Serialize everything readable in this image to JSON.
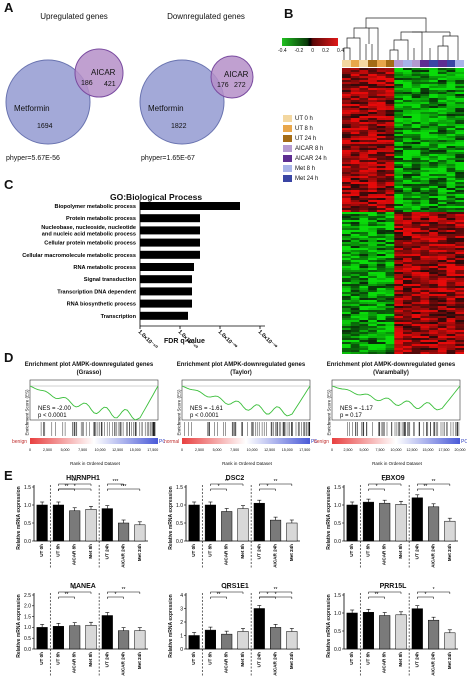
{
  "panels": {
    "A": "A",
    "B": "B",
    "C": "C",
    "D": "D",
    "E": "E"
  },
  "venn": [
    {
      "title": "Upregulated genes",
      "big_label": "Metformin",
      "small_label": "AICAR",
      "only_big": "1694",
      "overlap": "186",
      "only_small": "421",
      "phyper": "phyper=5.67E-56"
    },
    {
      "title": "Downregulated genes",
      "big_label": "Metformin",
      "small_label": "AICAR",
      "only_big": "1822",
      "overlap": "176",
      "only_small": "272",
      "phyper": "phyper=1.65E-67"
    }
  ],
  "heatmap": {
    "scale_ticks": [
      "-0.4",
      "-0.2",
      "0",
      "0.2",
      "0.4"
    ],
    "legend": [
      {
        "label": "UT 0 h",
        "color": "#f3d7a0"
      },
      {
        "label": "UT 8 h",
        "color": "#e8a64a"
      },
      {
        "label": "UT 24 h",
        "color": "#a46c16"
      },
      {
        "label": "AICAR 8 h",
        "color": "#b49ad0"
      },
      {
        "label": "AICAR 24 h",
        "color": "#5d2d91"
      },
      {
        "label": "Met 8 h",
        "color": "#a8b3e8"
      },
      {
        "label": "Met 24 h",
        "color": "#3a45a4"
      }
    ]
  },
  "go": {
    "title": "GO:Biological Process",
    "xlabel": "FDR q-value",
    "ticks": [
      "1.0x10⁻⁶⁰",
      "1.0x10⁻⁴⁰",
      "1.0x10⁻²⁰",
      "1.0x10⁻¹⁰"
    ]
  },
  "gsea": [
    {
      "title": "Enrichment plot AMPK-downregulated genes",
      "subtitle": "(Grasso)",
      "nes": "NES = -2.00",
      "p": "p < 0.0001",
      "left": "benign",
      "right": "PCa",
      "xticks": [
        "0",
        "2,500",
        "5,000",
        "7,500",
        "10,000",
        "12,500",
        "15,000",
        "17,500"
      ],
      "ylabel": "Enrichment Score (ES)",
      "xlabel": "Rank in Ordered Dataset"
    },
    {
      "title": "Enrichment plot AMPK-downregulated genes",
      "subtitle": "(Taylor)",
      "nes": "NES = -1.61",
      "p": "p < 0.0001",
      "left": "normal",
      "right": "PCa",
      "xticks": [
        "0",
        "2,500",
        "5,000",
        "7,500",
        "10,000",
        "12,500",
        "15,000",
        "17,500"
      ],
      "ylabel": "Enrichment Score (ES)",
      "xlabel": "Rank in Ordered Dataset"
    },
    {
      "title": "Enrichment plot AMPK-downregulated genes",
      "subtitle": "(Varambally)",
      "nes": "NES = -1.17",
      "p": "p = 0.17",
      "left": "benign",
      "right": "PCa",
      "xticks": [
        "0",
        "2,500",
        "5,000",
        "7,500",
        "10,000",
        "12,500",
        "15,000",
        "17,500",
        "20,000"
      ],
      "ylabel": "Enrichment Score (ES)",
      "xlabel": "Rank in Ordered Dataset"
    }
  ],
  "chart_data": [
    {
      "type": "bar",
      "title": "GO:Biological Process",
      "orientation": "horizontal",
      "xlabel": "FDR q-value",
      "categories": [
        "Biopolymer metabolic process",
        "Protein metabolic process",
        "Nucleobase, nucleoside, nucleotide and nucleic acid metabolic process",
        "Cellular protein metabolic process",
        "Cellular macromolecule metabolic process",
        "RNA metabolic process",
        "Signal transduction",
        "Transcription DNA dependent",
        "RNA biosynthetic process",
        "Transcription"
      ],
      "values": [
        100,
        60,
        60,
        60,
        60,
        54,
        52,
        52,
        52,
        48
      ]
    },
    {
      "type": "bar",
      "title": "HNRNPH1",
      "ylabel": "Relative mRNA expression",
      "ylim": [
        0,
        1.5
      ],
      "yticks": [
        "0.0",
        "0.5",
        "1.0",
        "1.5"
      ],
      "categories": [
        "UT 0h",
        "UT 8h",
        "AICAR 8h",
        "Met 8h",
        "UT 24h",
        "AICAR 24h",
        "Met 24h"
      ],
      "values": [
        1.0,
        1.0,
        0.84,
        0.88,
        0.9,
        0.5,
        0.45
      ],
      "sig": [
        {
          "a": 1,
          "b": 2,
          "label": "**"
        },
        {
          "a": 1,
          "b": 3,
          "label": "***"
        },
        {
          "a": 1,
          "b": 3,
          "label": "*"
        },
        {
          "a": 4,
          "b": 5,
          "label": "***"
        },
        {
          "a": 4,
          "b": 6,
          "label": "***"
        }
      ]
    },
    {
      "type": "bar",
      "title": "DSC2",
      "ylabel": "Relative mRNA expression",
      "ylim": [
        0,
        1.5
      ],
      "yticks": [
        "0.0",
        "0.5",
        "1.0",
        "1.5"
      ],
      "categories": [
        "UT 0h",
        "UT 8h",
        "AICAR 8h",
        "Met 8h",
        "UT 24h",
        "AICAR 24h",
        "Met 24h"
      ],
      "values": [
        1.0,
        1.0,
        0.82,
        0.9,
        1.05,
        0.58,
        0.5
      ],
      "sig": [
        {
          "a": 1,
          "b": 2,
          "label": "*"
        },
        {
          "a": 1,
          "b": 3,
          "label": "**"
        },
        {
          "a": 4,
          "b": 5,
          "label": "*"
        },
        {
          "a": 4,
          "b": 6,
          "label": "**"
        }
      ]
    },
    {
      "type": "bar",
      "title": "FBXO9",
      "ylabel": "Relative mRNA expression",
      "ylim": [
        0,
        1.5
      ],
      "yticks": [
        "0.0",
        "0.5",
        "1.0",
        "1.5"
      ],
      "categories": [
        "UT 0h",
        "UT 8h",
        "AICAR 8h",
        "Met 8h",
        "UT 24h",
        "AICAR 24h",
        "Met 24h"
      ],
      "values": [
        1.0,
        1.08,
        1.05,
        1.02,
        1.2,
        0.95,
        0.55
      ],
      "sig": [
        {
          "a": 1,
          "b": 2,
          "label": "*"
        },
        {
          "a": 1,
          "b": 3,
          "label": "**"
        },
        {
          "a": 4,
          "b": 5,
          "label": "**"
        },
        {
          "a": 4,
          "b": 6,
          "label": "**"
        }
      ]
    },
    {
      "type": "bar",
      "title": "MANEA",
      "ylabel": "Relative mRNA expression",
      "ylim": [
        0,
        2.5
      ],
      "yticks": [
        "0.0",
        "0.5",
        "1.0",
        "1.5",
        "2.0",
        "2.5"
      ],
      "categories": [
        "UT 0h",
        "UT 8h",
        "AICAR 8h",
        "Met 8h",
        "UT 24h",
        "AICAR 24h",
        "Met 24h"
      ],
      "values": [
        1.0,
        1.05,
        1.08,
        1.1,
        1.55,
        0.85,
        0.85
      ],
      "sig": [
        {
          "a": 1,
          "b": 2,
          "label": "**"
        },
        {
          "a": 1,
          "b": 3,
          "label": "**"
        },
        {
          "a": 4,
          "b": 5,
          "label": "*"
        },
        {
          "a": 4,
          "b": 6,
          "label": "**"
        }
      ]
    },
    {
      "type": "bar",
      "title": "ORS1E1",
      "ylabel": "Relative mRNA expression",
      "ylim": [
        0,
        4
      ],
      "yticks": [
        "0",
        "1",
        "2",
        "3",
        "4"
      ],
      "categories": [
        "UT 0h",
        "UT 8h",
        "AICAR 8h",
        "Met 8h",
        "UT 24h",
        "AICAR 24h",
        "Met 24h"
      ],
      "values": [
        1.0,
        1.4,
        1.1,
        1.3,
        3.0,
        1.6,
        1.3
      ],
      "sig": [
        {
          "a": 1,
          "b": 2,
          "label": "**"
        },
        {
          "a": 1,
          "b": 3,
          "label": "**"
        },
        {
          "a": 4,
          "b": 5,
          "label": "*"
        },
        {
          "a": 4,
          "b": 6,
          "label": "**"
        },
        {
          "a": 4,
          "b": 6,
          "label": "*"
        }
      ]
    },
    {
      "type": "bar",
      "title": "PRR15L",
      "ylabel": "Relative mRNA expression",
      "ylim": [
        0,
        1.5
      ],
      "yticks": [
        "0.0",
        "0.5",
        "1.0",
        "1.5"
      ],
      "categories": [
        "UT 0h",
        "UT 8h",
        "AICAR 8h",
        "Met 8h",
        "UT 24h",
        "AICAR 24h",
        "Met 24h"
      ],
      "values": [
        1.0,
        1.02,
        0.93,
        0.95,
        1.12,
        0.8,
        0.45
      ],
      "sig": [
        {
          "a": 1,
          "b": 2,
          "label": "**"
        },
        {
          "a": 1,
          "b": 3,
          "label": "*"
        },
        {
          "a": 4,
          "b": 5,
          "label": "*"
        },
        {
          "a": 4,
          "b": 6,
          "label": "*"
        }
      ]
    }
  ]
}
